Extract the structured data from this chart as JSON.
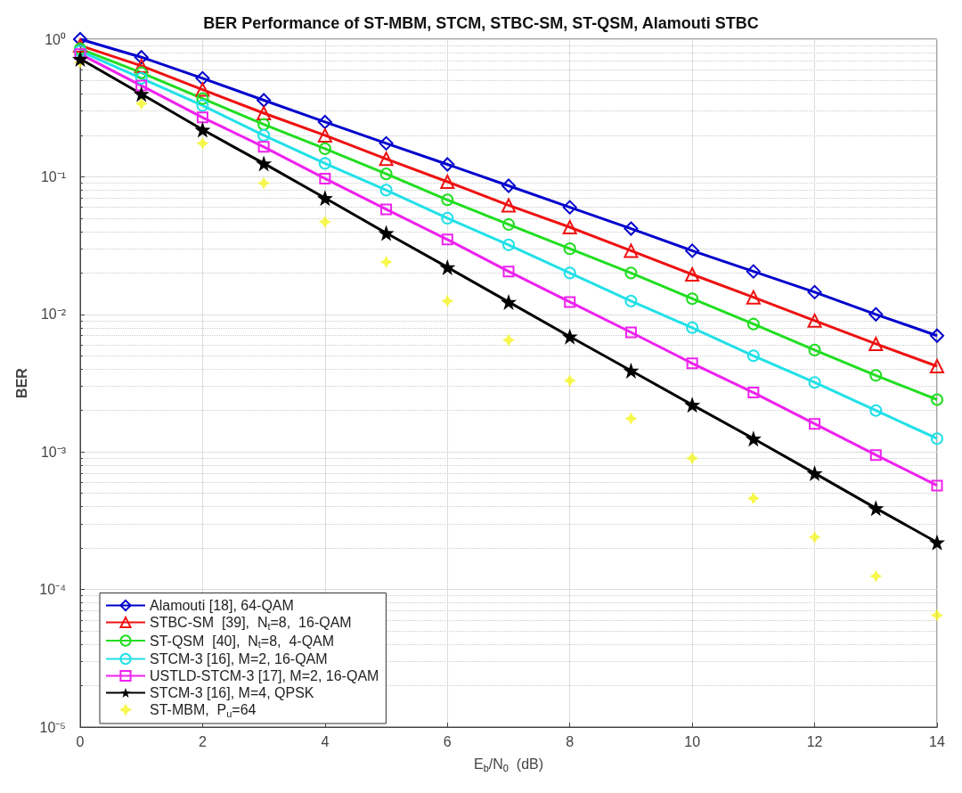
{
  "chart_data": {
    "type": "line",
    "title": "BER Performance of ST-MBM, STCM, STBC-SM, ST-QSM, Alamouti STBC",
    "xlabel": "E$_{b}$/N$_{0}$  (dB)",
    "ylabel": "BER",
    "x": [
      0,
      1,
      2,
      3,
      4,
      5,
      6,
      7,
      8,
      9,
      10,
      11,
      12,
      13,
      14
    ],
    "xlim": [
      0,
      14
    ],
    "xticks": [
      0,
      2,
      4,
      6,
      8,
      10,
      12,
      14
    ],
    "ylim": [
      1e-05,
      1
    ],
    "yticks": [
      {
        "value": 1e-05,
        "label": "10⁻⁵"
      },
      {
        "value": 0.0001,
        "label": "10⁻⁴"
      },
      {
        "value": 0.001,
        "label": "10⁻³"
      },
      {
        "value": 0.01,
        "label": "10⁻²"
      },
      {
        "value": 0.1,
        "label": "10⁻¹"
      },
      {
        "value": 1,
        "label": "10⁰"
      }
    ],
    "log": "y",
    "grid": true,
    "legend": "bottom left",
    "line_style": "solid",
    "series": [
      {
        "name": "Alamouti [18], 64-QAM",
        "color": "#0000cc",
        "marker": "diamond",
        "values": [
          1.0,
          0.74,
          0.52,
          0.36,
          0.25,
          0.175,
          0.123,
          0.086,
          0.06,
          0.042,
          0.029,
          0.0205,
          0.0145,
          0.01,
          0.007
        ]
      },
      {
        "name": "STBC-SM  [39],  N$_{t}$=8,  16-QAM",
        "color": "#ee1111",
        "marker": "triangle",
        "values": [
          0.9,
          0.64,
          0.43,
          0.29,
          0.2,
          0.135,
          0.092,
          0.062,
          0.043,
          0.029,
          0.0195,
          0.0133,
          0.009,
          0.0061,
          0.0042
        ]
      },
      {
        "name": "ST-QSM  [40],  N$_{t}$=8,  4-QAM",
        "color": "#22dd22",
        "marker": "circle",
        "values": [
          0.85,
          0.57,
          0.37,
          0.24,
          0.16,
          0.105,
          0.068,
          0.045,
          0.03,
          0.02,
          0.013,
          0.0085,
          0.0055,
          0.0036,
          0.0024
        ]
      },
      {
        "name": "STCM-3 [16], M=2, 16-QAM",
        "color": "#22e0e8",
        "marker": "circle",
        "values": [
          0.82,
          0.52,
          0.33,
          0.2,
          0.125,
          0.08,
          0.05,
          0.032,
          0.02,
          0.0125,
          0.008,
          0.005,
          0.0032,
          0.002,
          0.00125
        ]
      },
      {
        "name": "USTLD-STCM-3 [17], M=2, 16-QAM",
        "color": "#ee22ee",
        "marker": "square",
        "values": [
          0.78,
          0.46,
          0.27,
          0.165,
          0.097,
          0.058,
          0.035,
          0.0205,
          0.0123,
          0.0074,
          0.0044,
          0.0027,
          0.0016,
          0.00095,
          0.00057
        ]
      },
      {
        "name": "STCM-3 [16], M=4, QPSK",
        "color": "#000000",
        "marker": "star",
        "values": [
          0.72,
          0.4,
          0.22,
          0.125,
          0.07,
          0.039,
          0.022,
          0.0123,
          0.0069,
          0.0039,
          0.0022,
          0.00125,
          0.0007,
          0.00039,
          0.00022
        ]
      },
      {
        "name": "ST-MBM,  P$_{u}$=64",
        "type": "scatter",
        "color": "#f5f522",
        "marker": "cross",
        "values": [
          0.68,
          0.34,
          0.175,
          0.09,
          0.047,
          0.024,
          0.0125,
          0.0065,
          0.0033,
          0.00175,
          0.0009,
          0.00046,
          0.00024,
          0.000125,
          6.5e-05
        ]
      }
    ]
  }
}
